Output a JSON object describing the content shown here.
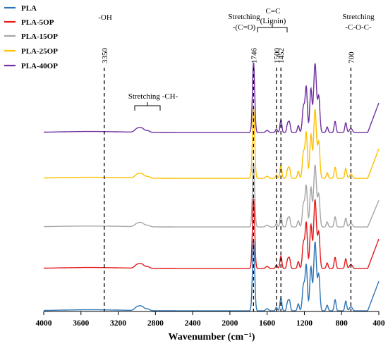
{
  "chart_data": {
    "type": "line",
    "title": "",
    "xlabel": "Wavenumber (cm⁻¹)",
    "ylabel": "",
    "xlim": [
      4000,
      400
    ],
    "x_reversed": true,
    "x_ticks": [
      4000,
      3600,
      3200,
      2800,
      2400,
      2000,
      1600,
      1200,
      800,
      400
    ],
    "x_tick_labels": [
      "4000",
      "3600",
      "3200",
      "2800",
      "2400",
      "2000",
      "1600",
      "1200",
      "800",
      "400"
    ],
    "legend": {
      "placement": "top-left",
      "entries": [
        "PLA",
        "PLA-5OP",
        "PLA-15OP",
        "PLA-25OP",
        "PLA-40OP"
      ]
    },
    "series": [
      {
        "name": "PLA",
        "color": "#2E75B6",
        "baseline": 0.9,
        "scale": 1.0
      },
      {
        "name": "PLA-5OP",
        "color": "#E41A1C",
        "baseline": 60.9,
        "scale": 1.0
      },
      {
        "name": "PLA-15OP",
        "color": "#A6A6A6",
        "baseline": 119.9,
        "scale": 0.9
      },
      {
        "name": "PLA-25OP",
        "color": "#FFC000",
        "baseline": 188.9,
        "scale": 1.0
      },
      {
        "name": "PLA-40OP",
        "color": "#7030A0",
        "baseline": 253.9,
        "scale": 1.0
      }
    ],
    "reference_lines": [
      {
        "x": 3350,
        "label": "3350"
      },
      {
        "x": 1746,
        "label": "1746"
      },
      {
        "x": 1500,
        "label": "1500"
      },
      {
        "x": 1452,
        "label": "1452"
      },
      {
        "x": 700,
        "label": "700"
      }
    ],
    "annotations": [
      {
        "text": "-OH",
        "x": 3350
      },
      {
        "text": "Stretching -CH-",
        "x": 2960
      },
      {
        "text": "Stretching",
        "x": 1746
      },
      {
        "text": "-(C=O)",
        "x": 1746
      },
      {
        "text": "C=C",
        "x": 1476
      },
      {
        "text": "(Lignin)",
        "x": 1476
      },
      {
        "text": "Stretching",
        "x": 590
      },
      {
        "text": "-C-O-C-",
        "x": 590
      }
    ]
  }
}
